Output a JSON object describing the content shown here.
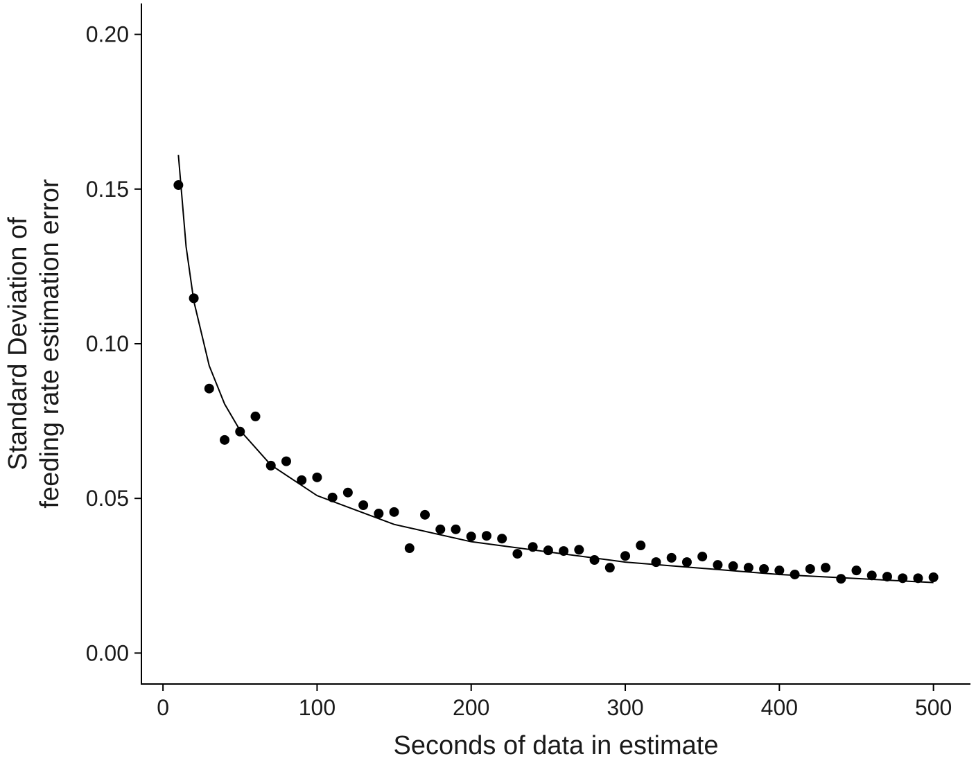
{
  "chart_data": {
    "type": "scatter",
    "xlabel": "Seconds of data in estimate",
    "ylabel": [
      "Standard Deviation of",
      "feeding rate estimation error"
    ],
    "xlim": [
      -14,
      524
    ],
    "ylim": [
      -0.01,
      0.21
    ],
    "xticks": [
      0,
      100,
      200,
      300,
      400,
      500
    ],
    "yticks": [
      {
        "value": 0,
        "label": "0.00"
      },
      {
        "value": 0.05,
        "label": "0.05"
      },
      {
        "value": 0.1,
        "label": "0.10"
      },
      0.15,
      {
        "value": 0.2,
        "label": "0.20"
      }
    ],
    "grid": false,
    "series": [
      {
        "type": "scatter",
        "color": "#000000",
        "x": [
          10,
          20,
          30,
          40,
          50,
          60,
          70,
          80,
          90,
          100,
          110,
          120,
          130,
          140,
          150,
          160,
          170,
          180,
          190,
          200,
          210,
          220,
          230,
          240,
          250,
          260,
          270,
          280,
          290,
          300,
          310,
          320,
          330,
          340,
          350,
          360,
          370,
          380,
          390,
          400,
          410,
          420,
          430,
          440,
          450,
          460,
          470,
          480,
          490,
          500
        ],
        "values": [
          0.1513,
          0.1147,
          0.0855,
          0.0689,
          0.0716,
          0.0765,
          0.0606,
          0.062,
          0.0559,
          0.0568,
          0.0503,
          0.0519,
          0.0478,
          0.0451,
          0.0456,
          0.0339,
          0.0447,
          0.04,
          0.04,
          0.0377,
          0.0379,
          0.037,
          0.0321,
          0.0343,
          0.0332,
          0.033,
          0.0334,
          0.0301,
          0.0276,
          0.0314,
          0.0348,
          0.0294,
          0.0308,
          0.0294,
          0.0312,
          0.0285,
          0.0281,
          0.0276,
          0.0272,
          0.0267,
          0.0254,
          0.0272,
          0.0276,
          0.024,
          0.0267,
          0.0251,
          0.0247,
          0.0242,
          0.0242,
          0.0245
        ]
      },
      {
        "type": "line",
        "color": "#000000",
        "x": [
          10,
          15,
          20,
          30,
          40,
          50,
          70,
          100,
          150,
          200,
          300,
          400,
          500
        ],
        "values": [
          0.161,
          0.1314,
          0.1138,
          0.0929,
          0.0805,
          0.072,
          0.0608,
          0.0509,
          0.0416,
          0.036,
          0.0294,
          0.0254,
          0.0228
        ]
      }
    ]
  }
}
